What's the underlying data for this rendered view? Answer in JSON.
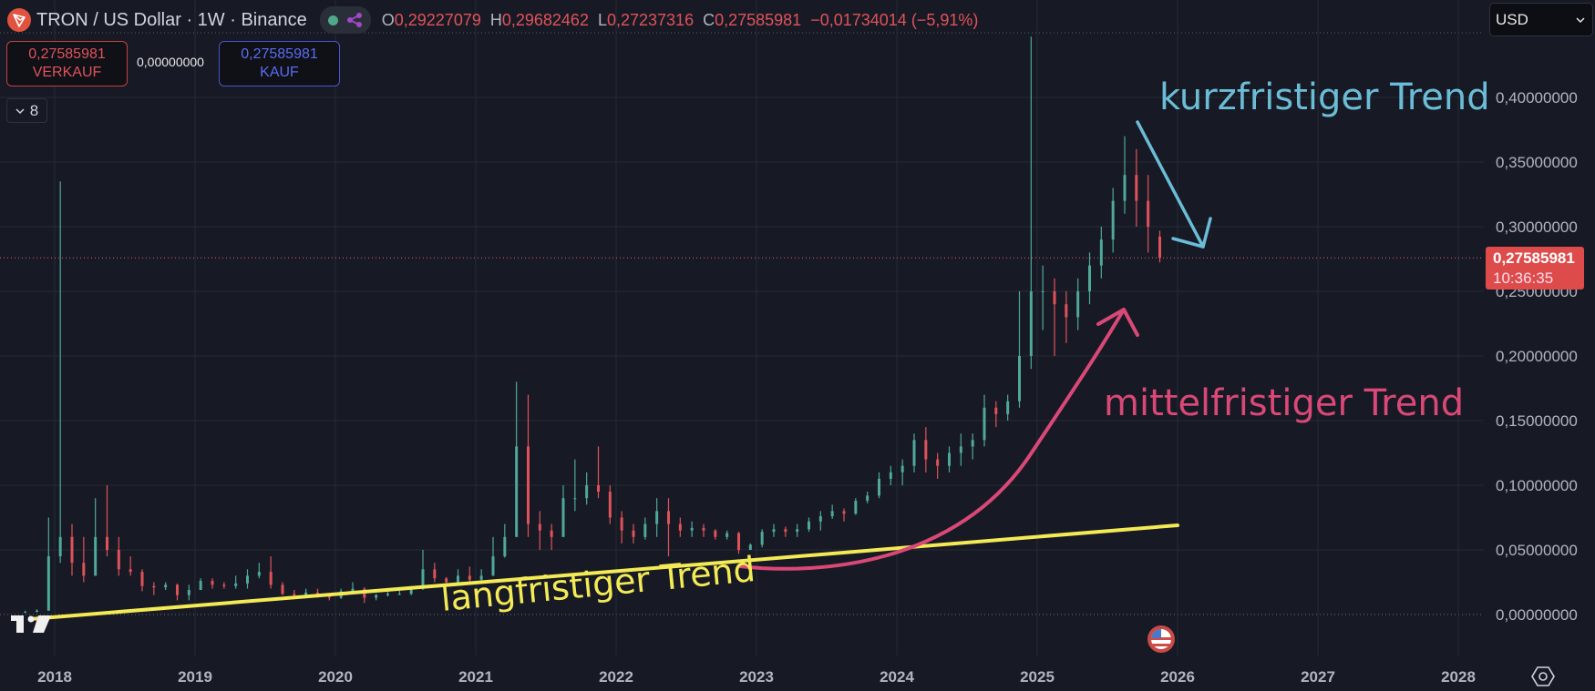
{
  "header": {
    "title": "TRON / US Dollar · 1W · Binance",
    "ohlc": {
      "o_label": "O",
      "o": "0,29227079",
      "h_label": "H",
      "h": "0,29682462",
      "l_label": "L",
      "l": "0,27237316",
      "c_label": "C",
      "c": "0,27585981",
      "change": "−0,01734014 (−5,91%)"
    }
  },
  "trade": {
    "sell_price": "0,27585981",
    "sell_label": "VERKAUF",
    "spread": "0,00000000",
    "buy_price": "0,27585981",
    "buy_label": "KAUF"
  },
  "indicators_toggle": {
    "count": "8"
  },
  "currency_select": {
    "value": "USD"
  },
  "current_price": {
    "value": "0,27585981",
    "countdown": "10:36:35"
  },
  "colors": {
    "up": "#4fa89a",
    "down": "#e0525a",
    "background": "#171a25",
    "grid": "#262a35",
    "trend_long": "#f3ea55",
    "trend_mid": "#d94876",
    "trend_short": "#6bbcd6"
  },
  "chart_data": {
    "type": "candlestick",
    "ylim": [
      0,
      0.45
    ],
    "y_ticks": [
      {
        "v": 0.4,
        "label": "0,40000000"
      },
      {
        "v": 0.35,
        "label": "0,35000000"
      },
      {
        "v": 0.3,
        "label": "0,30000000"
      },
      {
        "v": 0.25,
        "label": "0,25000000"
      },
      {
        "v": 0.2,
        "label": "0,20000000"
      },
      {
        "v": 0.15,
        "label": "0,15000000"
      },
      {
        "v": 0.1,
        "label": "0,10000000"
      },
      {
        "v": 0.05,
        "label": "0,05000000"
      },
      {
        "v": 0.0,
        "label": "0,00000000"
      }
    ],
    "x_ticks": [
      "2018",
      "2019",
      "2020",
      "2021",
      "2022",
      "2023",
      "2024",
      "2025",
      "2026",
      "2027",
      "2028"
    ],
    "grid": true,
    "candles_note_fields": [
      "date",
      "open",
      "high",
      "low",
      "close"
    ],
    "candles": [
      [
        "2017-10",
        0.002,
        0.003,
        0.0015,
        0.002
      ],
      [
        "2017-11",
        0.002,
        0.004,
        0.002,
        0.003
      ],
      [
        "2017-12",
        0.003,
        0.075,
        0.003,
        0.045
      ],
      [
        "2018-01",
        0.045,
        0.335,
        0.04,
        0.06
      ],
      [
        "2018-02",
        0.06,
        0.07,
        0.03,
        0.04
      ],
      [
        "2018-03",
        0.04,
        0.06,
        0.025,
        0.03
      ],
      [
        "2018-04",
        0.03,
        0.09,
        0.03,
        0.06
      ],
      [
        "2018-05",
        0.06,
        0.1,
        0.045,
        0.05
      ],
      [
        "2018-06",
        0.05,
        0.06,
        0.03,
        0.035
      ],
      [
        "2018-07",
        0.035,
        0.045,
        0.03,
        0.033
      ],
      [
        "2018-08",
        0.033,
        0.035,
        0.018,
        0.022
      ],
      [
        "2018-09",
        0.022,
        0.025,
        0.015,
        0.021
      ],
      [
        "2018-10",
        0.021,
        0.025,
        0.019,
        0.023
      ],
      [
        "2018-11",
        0.023,
        0.024,
        0.011,
        0.015
      ],
      [
        "2018-12",
        0.015,
        0.023,
        0.011,
        0.019
      ],
      [
        "2019-01",
        0.019,
        0.028,
        0.019,
        0.026
      ],
      [
        "2019-02",
        0.026,
        0.028,
        0.02,
        0.023
      ],
      [
        "2019-03",
        0.023,
        0.025,
        0.02,
        0.022
      ],
      [
        "2019-04",
        0.022,
        0.03,
        0.02,
        0.024
      ],
      [
        "2019-05",
        0.024,
        0.035,
        0.02,
        0.03
      ],
      [
        "2019-06",
        0.03,
        0.04,
        0.028,
        0.033
      ],
      [
        "2019-07",
        0.033,
        0.045,
        0.02,
        0.023
      ],
      [
        "2019-08",
        0.023,
        0.025,
        0.015,
        0.016
      ],
      [
        "2019-09",
        0.016,
        0.019,
        0.013,
        0.015
      ],
      [
        "2019-10",
        0.015,
        0.02,
        0.013,
        0.017
      ],
      [
        "2019-11",
        0.017,
        0.02,
        0.013,
        0.014
      ],
      [
        "2019-12",
        0.014,
        0.015,
        0.011,
        0.013
      ],
      [
        "2020-01",
        0.013,
        0.02,
        0.012,
        0.018
      ],
      [
        "2020-02",
        0.018,
        0.025,
        0.017,
        0.02
      ],
      [
        "2020-03",
        0.02,
        0.021,
        0.009,
        0.013
      ],
      [
        "2020-04",
        0.013,
        0.016,
        0.011,
        0.015
      ],
      [
        "2020-05",
        0.015,
        0.018,
        0.014,
        0.016
      ],
      [
        "2020-06",
        0.016,
        0.019,
        0.015,
        0.016
      ],
      [
        "2020-07",
        0.016,
        0.022,
        0.015,
        0.02
      ],
      [
        "2020-08",
        0.02,
        0.05,
        0.019,
        0.035
      ],
      [
        "2020-09",
        0.035,
        0.04,
        0.025,
        0.028
      ],
      [
        "2020-10",
        0.028,
        0.029,
        0.024,
        0.025
      ],
      [
        "2020-11",
        0.025,
        0.035,
        0.023,
        0.03
      ],
      [
        "2020-12",
        0.03,
        0.037,
        0.025,
        0.027
      ],
      [
        "2021-01",
        0.027,
        0.035,
        0.026,
        0.03
      ],
      [
        "2021-02",
        0.03,
        0.06,
        0.03,
        0.045
      ],
      [
        "2021-03",
        0.045,
        0.07,
        0.044,
        0.06
      ],
      [
        "2021-04",
        0.06,
        0.18,
        0.06,
        0.13
      ],
      [
        "2021-05",
        0.13,
        0.17,
        0.06,
        0.07
      ],
      [
        "2021-06",
        0.07,
        0.08,
        0.05,
        0.065
      ],
      [
        "2021-07",
        0.065,
        0.07,
        0.05,
        0.06
      ],
      [
        "2021-08",
        0.06,
        0.1,
        0.06,
        0.09
      ],
      [
        "2021-09",
        0.09,
        0.12,
        0.08,
        0.09
      ],
      [
        "2021-10",
        0.09,
        0.11,
        0.085,
        0.1
      ],
      [
        "2021-11",
        0.1,
        0.13,
        0.09,
        0.095
      ],
      [
        "2021-12",
        0.095,
        0.1,
        0.07,
        0.075
      ],
      [
        "2022-01",
        0.075,
        0.08,
        0.055,
        0.065
      ],
      [
        "2022-02",
        0.065,
        0.07,
        0.055,
        0.06
      ],
      [
        "2022-03",
        0.06,
        0.075,
        0.058,
        0.07
      ],
      [
        "2022-04",
        0.07,
        0.09,
        0.06,
        0.08
      ],
      [
        "2022-05",
        0.08,
        0.09,
        0.045,
        0.07
      ],
      [
        "2022-06",
        0.07,
        0.075,
        0.06,
        0.065
      ],
      [
        "2022-07",
        0.065,
        0.072,
        0.06,
        0.067
      ],
      [
        "2022-08",
        0.067,
        0.07,
        0.06,
        0.065
      ],
      [
        "2022-09",
        0.065,
        0.066,
        0.058,
        0.06
      ],
      [
        "2022-10",
        0.06,
        0.065,
        0.058,
        0.063
      ],
      [
        "2022-11",
        0.063,
        0.064,
        0.047,
        0.05
      ],
      [
        "2022-12",
        0.05,
        0.055,
        0.05,
        0.054
      ],
      [
        "2023-01",
        0.054,
        0.066,
        0.052,
        0.064
      ],
      [
        "2023-02",
        0.064,
        0.07,
        0.06,
        0.066
      ],
      [
        "2023-03",
        0.066,
        0.068,
        0.06,
        0.064
      ],
      [
        "2023-04",
        0.064,
        0.07,
        0.06,
        0.066
      ],
      [
        "2023-05",
        0.066,
        0.075,
        0.064,
        0.072
      ],
      [
        "2023-06",
        0.072,
        0.08,
        0.065,
        0.076
      ],
      [
        "2023-07",
        0.076,
        0.085,
        0.074,
        0.08
      ],
      [
        "2023-08",
        0.08,
        0.082,
        0.072,
        0.078
      ],
      [
        "2023-09",
        0.078,
        0.09,
        0.077,
        0.088
      ],
      [
        "2023-10",
        0.088,
        0.095,
        0.086,
        0.092
      ],
      [
        "2023-11",
        0.092,
        0.11,
        0.09,
        0.105
      ],
      [
        "2023-12",
        0.105,
        0.115,
        0.1,
        0.11
      ],
      [
        "2024-01",
        0.11,
        0.12,
        0.1,
        0.115
      ],
      [
        "2024-02",
        0.115,
        0.14,
        0.11,
        0.135
      ],
      [
        "2024-03",
        0.135,
        0.145,
        0.11,
        0.12
      ],
      [
        "2024-04",
        0.12,
        0.125,
        0.105,
        0.115
      ],
      [
        "2024-05",
        0.115,
        0.13,
        0.11,
        0.125
      ],
      [
        "2024-06",
        0.125,
        0.14,
        0.115,
        0.13
      ],
      [
        "2024-07",
        0.13,
        0.14,
        0.12,
        0.135
      ],
      [
        "2024-08",
        0.135,
        0.17,
        0.13,
        0.16
      ],
      [
        "2024-09",
        0.16,
        0.165,
        0.145,
        0.155
      ],
      [
        "2024-10",
        0.155,
        0.17,
        0.15,
        0.165
      ],
      [
        "2024-11",
        0.165,
        0.25,
        0.16,
        0.2
      ],
      [
        "2024-12",
        0.2,
        0.447,
        0.19,
        0.25
      ],
      [
        "2025-01",
        0.25,
        0.27,
        0.22,
        0.25
      ],
      [
        "2025-02",
        0.25,
        0.26,
        0.2,
        0.24
      ],
      [
        "2025-03",
        0.24,
        0.25,
        0.21,
        0.23
      ],
      [
        "2025-04",
        0.23,
        0.26,
        0.22,
        0.25
      ],
      [
        "2025-05",
        0.25,
        0.28,
        0.24,
        0.27
      ],
      [
        "2025-06",
        0.27,
        0.3,
        0.26,
        0.29
      ],
      [
        "2025-07",
        0.29,
        0.33,
        0.28,
        0.32
      ],
      [
        "2025-08",
        0.32,
        0.37,
        0.31,
        0.34
      ],
      [
        "2025-09",
        0.34,
        0.36,
        0.3,
        0.32
      ],
      [
        "2025-10",
        0.32,
        0.34,
        0.28,
        0.3
      ],
      [
        "2025-11",
        0.29227079,
        0.29682462,
        0.27237316,
        0.27585981
      ]
    ],
    "last_price": 0.27585981,
    "annotations": [
      {
        "id": "short",
        "text": "kurzfristiger Trend"
      },
      {
        "id": "mid",
        "text": "mittelfristiger Trend"
      },
      {
        "id": "long",
        "text": "langfristiger Trend"
      }
    ]
  }
}
